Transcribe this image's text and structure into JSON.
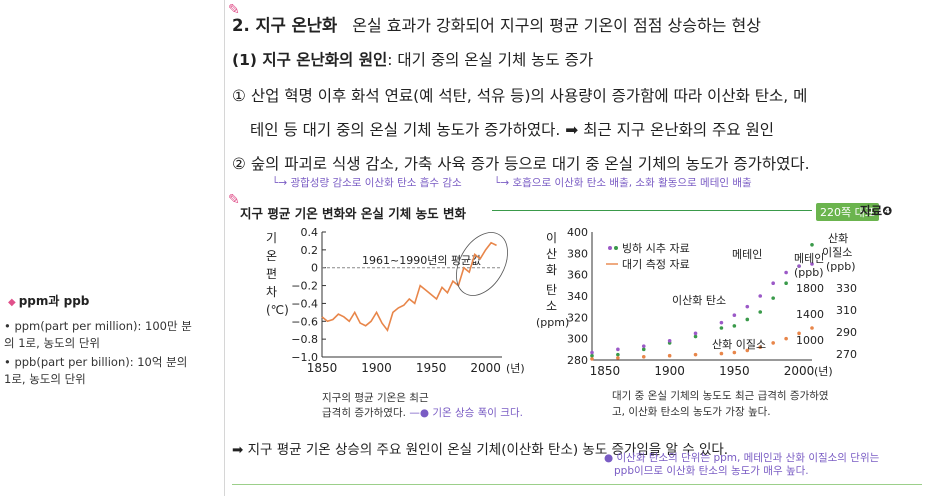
{
  "sidebar": {
    "title": "ppm과 ppb",
    "items": [
      "• ppm(part per million): 100만 분의 1로, 농도의 단위",
      "• ppb(part per billion): 10억 분의 1로, 농도의 단위"
    ]
  },
  "section": {
    "number": "2. 지구 온난화",
    "desc": "온실 효과가 강화되어 지구의 평균 기온이 점점 상승하는 현상",
    "cause_label": "(1) 지구 온난화의 원인",
    "cause_text": ": 대기 중의 온실 기체 농도 증가",
    "p1_line1": "① 산업 혁명 이후 화석 연료(예 석탄, 석유 등)의 사용량이 증가함에 따라 이산화 탄소, 메",
    "p1_line2": "테인 등 대기 중의 온실 기체 농도가 증가하였다. ➡ 최근 지구 온난화의 주요 원인",
    "p2": "② 숲의 파괴로 식생 감소, 가축 사육 증가 등으로 대기 중 온실 기체의 농도가 증가하였다.",
    "note1": "광합성량 감소로 이산화 탄소 흡수 감소",
    "note2": "호흡으로 이산화 탄소 배출, 소화 활동으로 메테인 배출"
  },
  "figure": {
    "title": "지구 평균 기온 변화와 온실 기체 농도 변화",
    "ref_page": "220쪽 대표",
    "ref_tag": "자료❹",
    "left_caption1": "지구의 평균 기온은 최근",
    "left_caption2": "급격히 증가하였다.",
    "left_caption_note": "기온 상승 폭이 크다.",
    "right_caption1": "대기 중 온실 기체의 농도도 최근 급격히 증가하였",
    "right_caption2": "고, 이산화 탄소의 농도가 가장 높다."
  },
  "summary": {
    "text": "➡ 지구 평균 기온 상승의 주요 원인이 온실 기체(이산화 탄소) 농도 증가임을 알 수 있다.",
    "note1": "이산화 탄소의 단위는 ppm, 메테인과 산화 이질소의 단위는",
    "note2": "ppb이므로 이산화 탄소의 농도가 매우 높다."
  },
  "chart_data": [
    {
      "type": "line",
      "ylabel": "기온 편차(℃)",
      "xlabel": "(년)",
      "x_ticks": [
        "1850",
        "1900",
        "1950",
        "2000"
      ],
      "y_ticks": [
        "0.4",
        "0.2",
        "0",
        "−0.2",
        "−0.4",
        "−0.6",
        "−0.8",
        "−1.0"
      ],
      "xlim": [
        1850,
        2015
      ],
      "ylim": [
        -1.0,
        0.4
      ],
      "annotation": "1961~1990년의 평균값",
      "series": [
        {
          "x": [
            1850,
            1855,
            1860,
            1865,
            1870,
            1875,
            1880,
            1885,
            1890,
            1895,
            1900,
            1905,
            1910,
            1915,
            1920,
            1925,
            1930,
            1935,
            1940,
            1945,
            1950,
            1955,
            1960,
            1965,
            1970,
            1975,
            1980,
            1985,
            1990,
            1995,
            2000,
            2005,
            2010
          ],
          "values": [
            -0.55,
            -0.6,
            -0.58,
            -0.52,
            -0.55,
            -0.6,
            -0.5,
            -0.62,
            -0.65,
            -0.6,
            -0.5,
            -0.62,
            -0.7,
            -0.5,
            -0.45,
            -0.42,
            -0.35,
            -0.4,
            -0.2,
            -0.25,
            -0.3,
            -0.35,
            -0.22,
            -0.28,
            -0.15,
            -0.2,
            0.0,
            -0.05,
            0.15,
            0.1,
            0.2,
            0.28,
            0.25
          ]
        }
      ]
    },
    {
      "type": "scatter",
      "ylabel": "이산화 탄소(ppm)",
      "ylabel_right": "메테인(ppb) 산화 이질소(ppb)",
      "xlabel": "(년)",
      "x_ticks": [
        "1850",
        "1900",
        "1950",
        "2000"
      ],
      "y_ticks": [
        "400",
        "380",
        "360",
        "340",
        "320",
        "300",
        "280"
      ],
      "y_ticks_methane": [
        "1800",
        "1400",
        "1000"
      ],
      "y_ticks_n2o": [
        "330",
        "310",
        "290",
        "270"
      ],
      "legend": [
        "빙하 시추 자료",
        "대기 측정 자료"
      ],
      "labels": [
        "메테인",
        "이산화 탄소",
        "산화 이질소"
      ],
      "xlim": [
        1840,
        2010
      ],
      "ylim": [
        280,
        400
      ],
      "series": [
        {
          "name": "이산화 탄소",
          "x": [
            1840,
            1860,
            1880,
            1900,
            1920,
            1940,
            1950,
            1960,
            1970,
            1980,
            1990,
            2000,
            2010
          ],
          "values": [
            284,
            285,
            290,
            296,
            302,
            310,
            312,
            318,
            325,
            338,
            352,
            368,
            388
          ]
        },
        {
          "name": "메테인",
          "x": [
            1840,
            1860,
            1880,
            1900,
            1920,
            1940,
            1950,
            1960,
            1970,
            1980,
            1990,
            2000,
            2010
          ],
          "values": [
            287,
            290,
            293,
            298,
            305,
            315,
            322,
            330,
            340,
            352,
            362,
            368,
            370
          ]
        },
        {
          "name": "산화 이질소",
          "x": [
            1840,
            1860,
            1880,
            1900,
            1920,
            1940,
            1950,
            1960,
            1970,
            1980,
            1990,
            2000,
            2010
          ],
          "values": [
            281,
            282,
            283,
            284,
            285,
            286,
            287,
            289,
            292,
            296,
            300,
            305,
            310
          ]
        }
      ]
    }
  ]
}
